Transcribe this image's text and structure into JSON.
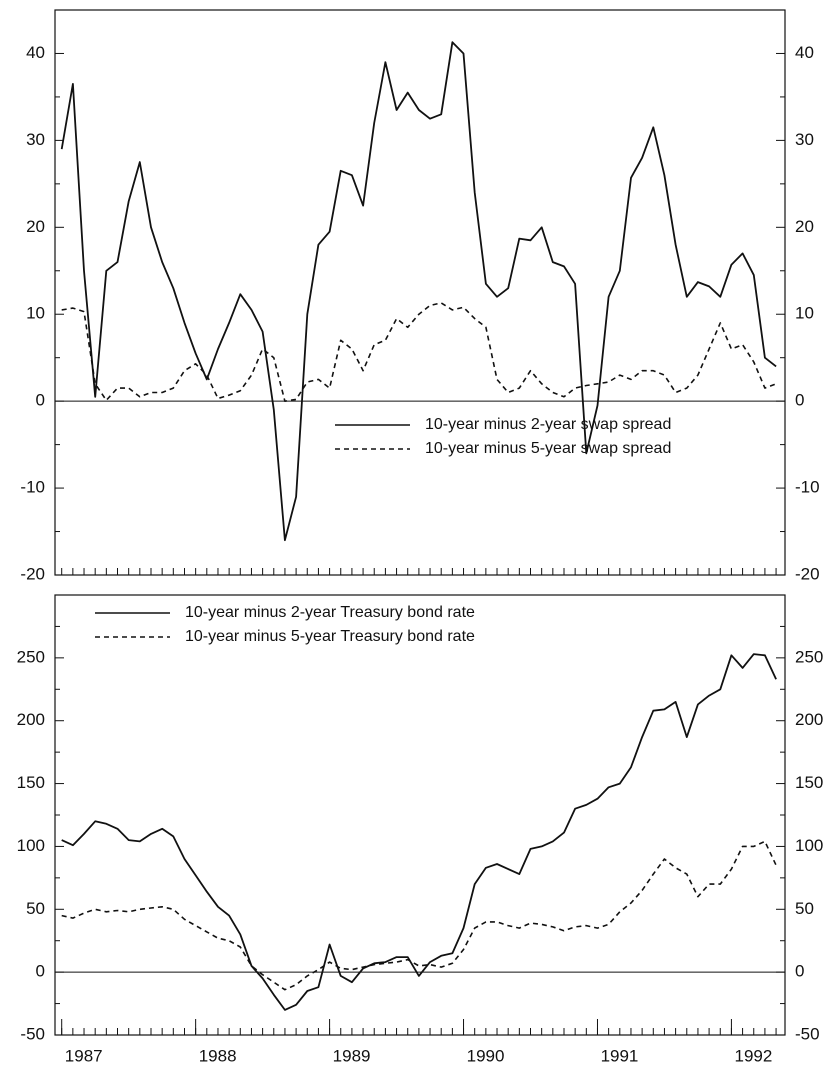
{
  "chart_data": [
    {
      "type": "line",
      "x": [
        1987,
        1987.0833,
        1987.1667,
        1987.25,
        1987.3333,
        1987.4167,
        1987.5,
        1987.5833,
        1987.6667,
        1987.75,
        1987.8333,
        1987.9167,
        1988,
        1988.0833,
        1988.1667,
        1988.25,
        1988.3333,
        1988.4167,
        1988.5,
        1988.5833,
        1988.6667,
        1988.75,
        1988.8333,
        1988.9167,
        1989,
        1989.0833,
        1989.1667,
        1989.25,
        1989.3333,
        1989.4167,
        1989.5,
        1989.5833,
        1989.6667,
        1989.75,
        1989.8333,
        1989.9167,
        1990,
        1990.0833,
        1990.1667,
        1990.25,
        1990.3333,
        1990.4167,
        1990.5,
        1990.5833,
        1990.6667,
        1990.75,
        1990.8333,
        1990.9167,
        1991,
        1991.0833,
        1991.1667,
        1991.25,
        1991.3333,
        1991.4167,
        1991.5,
        1991.5833,
        1991.6667,
        1991.75,
        1991.8333,
        1991.9167,
        1992,
        1992.0833,
        1992.1667,
        1992.25,
        1992.3333
      ],
      "xlim": [
        1986.95,
        1992.4
      ],
      "ylim": [
        -20,
        45
      ],
      "yticks": [
        -20,
        -10,
        0,
        10,
        20,
        30,
        40
      ],
      "y2lim": [
        -20,
        45
      ],
      "y2ticks": [
        -20,
        -10,
        0,
        10,
        20,
        30,
        40
      ],
      "yminorticks": [
        -15,
        -5,
        5,
        15,
        25,
        35
      ],
      "legend": "lower right",
      "series": [
        {
          "name": "10-year minus 2-year swap spread",
          "color": "#111111",
          "dash": "solid",
          "values": [
            29,
            36.5,
            15,
            0.5,
            15,
            16,
            23,
            27.5,
            20,
            16,
            13,
            9,
            5.5,
            2.5,
            6,
            9,
            12.3,
            10.5,
            8,
            -1,
            -16,
            -11,
            10,
            18,
            19.5,
            26.5,
            26,
            22.5,
            32,
            39,
            33.5,
            35.5,
            33.5,
            32.5,
            33,
            41.3,
            40,
            24,
            13.5,
            12,
            13,
            18.7,
            18.5,
            20,
            16,
            15.5,
            13.5,
            -6,
            -0.5,
            12,
            15,
            25.7,
            28,
            31.5,
            26,
            18,
            12,
            13.7,
            13.2,
            12,
            15.7,
            17,
            14.5,
            5,
            4
          ]
        },
        {
          "name": "10-year minus 5-year swap spread",
          "color": "#111111",
          "dash": "dashed",
          "values": [
            10.5,
            10.7,
            10.3,
            2,
            0.1,
            1.5,
            1.5,
            0.5,
            1,
            1,
            1.5,
            3.5,
            4.3,
            3,
            0.3,
            0.7,
            1.2,
            3,
            6,
            5,
            0,
            0.2,
            2.2,
            2.5,
            1.5,
            7,
            6,
            3.5,
            6.5,
            7,
            9.5,
            8.5,
            10,
            11,
            11.3,
            10.5,
            10.8,
            9.5,
            8.5,
            2.5,
            1,
            1.5,
            3.5,
            2,
            1,
            0.5,
            1.5,
            1.8,
            2,
            2.2,
            3,
            2.5,
            3.5,
            3.5,
            3,
            1,
            1.5,
            3,
            6,
            9,
            6,
            6.5,
            4.5,
            1.5,
            2
          ]
        }
      ]
    },
    {
      "type": "line",
      "x": [
        1987,
        1987.0833,
        1987.1667,
        1987.25,
        1987.3333,
        1987.4167,
        1987.5,
        1987.5833,
        1987.6667,
        1987.75,
        1987.8333,
        1987.9167,
        1988,
        1988.0833,
        1988.1667,
        1988.25,
        1988.3333,
        1988.4167,
        1988.5,
        1988.5833,
        1988.6667,
        1988.75,
        1988.8333,
        1988.9167,
        1989,
        1989.0833,
        1989.1667,
        1989.25,
        1989.3333,
        1989.4167,
        1989.5,
        1989.5833,
        1989.6667,
        1989.75,
        1989.8333,
        1989.9167,
        1990,
        1990.0833,
        1990.1667,
        1990.25,
        1990.3333,
        1990.4167,
        1990.5,
        1990.5833,
        1990.6667,
        1990.75,
        1990.8333,
        1990.9167,
        1991,
        1991.0833,
        1991.1667,
        1991.25,
        1991.3333,
        1991.4167,
        1991.5,
        1991.5833,
        1991.6667,
        1991.75,
        1991.8333,
        1991.9167,
        1992,
        1992.0833,
        1992.1667,
        1992.25,
        1992.3333
      ],
      "xlim": [
        1986.95,
        1992.4
      ],
      "xticks": [
        1987,
        1988,
        1989,
        1990,
        1991,
        1992
      ],
      "ylim": [
        -50,
        300
      ],
      "yticks": [
        -50,
        0,
        50,
        100,
        150,
        200,
        250
      ],
      "y2lim": [
        -50,
        300
      ],
      "y2ticks": [
        -50,
        0,
        50,
        100,
        150,
        200,
        250
      ],
      "yminorticks": [
        -25,
        25,
        75,
        125,
        175,
        225,
        275
      ],
      "legend": "upper left",
      "series": [
        {
          "name": "10-year minus 2-year Treasury bond rate",
          "color": "#111111",
          "dash": "solid",
          "values": [
            105,
            101,
            110,
            120,
            118,
            114,
            105,
            104,
            110,
            114,
            108,
            90,
            77,
            64,
            52,
            45,
            30,
            5,
            -5,
            -18,
            -30,
            -26,
            -15,
            -12,
            22,
            -3,
            -8,
            3,
            7,
            8,
            12,
            12,
            -3,
            8,
            13,
            15,
            35,
            70,
            83,
            86,
            82,
            78,
            98,
            100,
            104,
            111,
            130,
            133,
            138,
            147,
            150,
            163,
            187,
            208,
            209,
            215,
            187,
            213,
            220,
            225,
            252,
            242,
            253,
            252,
            233
          ]
        },
        {
          "name": "10-year minus 5-year Treasury bond rate",
          "color": "#111111",
          "dash": "dashed",
          "values": [
            45,
            43,
            47,
            50,
            48,
            49,
            48,
            50,
            51,
            52,
            50,
            42,
            37,
            32,
            27,
            25,
            20,
            5,
            -2,
            -8,
            -14,
            -10,
            -3,
            2,
            8,
            3,
            2,
            4,
            6,
            7,
            8,
            10,
            5,
            6,
            4,
            7,
            18,
            35,
            40,
            40,
            37,
            35,
            39,
            38,
            36,
            33,
            36,
            37,
            35,
            38,
            48,
            55,
            65,
            78,
            90,
            83,
            78,
            60,
            70,
            70,
            82,
            100,
            100,
            104,
            85
          ]
        }
      ]
    }
  ]
}
